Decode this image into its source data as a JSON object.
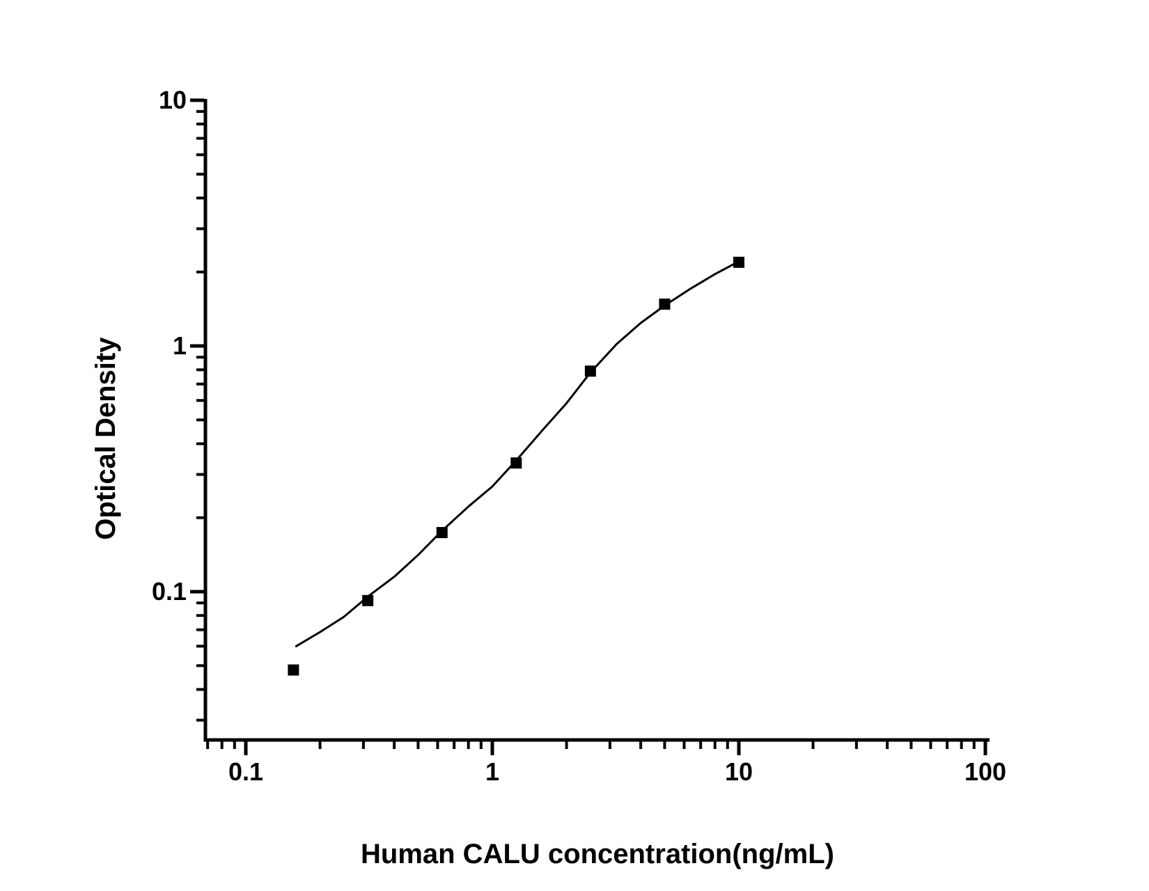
{
  "chart_data": {
    "type": "scatter",
    "title": "",
    "xlabel": "Human CALU concentration(ng/mL)",
    "ylabel": "Optical Density",
    "x_scale": "log",
    "y_scale": "log",
    "xlim": [
      0.07,
      100
    ],
    "ylim": [
      0.025,
      10
    ],
    "grid": false,
    "legend": false,
    "x_ticks": {
      "values": [
        0.1,
        1,
        10,
        100
      ],
      "labels": [
        "0.1",
        "1",
        "10",
        "100"
      ]
    },
    "y_ticks": {
      "values": [
        0.1,
        1,
        10
      ],
      "labels": [
        "0.1",
        "1",
        "10"
      ]
    },
    "series": [
      {
        "name": "standard-points",
        "kind": "scatter",
        "marker": "filled-square",
        "marker_size_px": 16,
        "color": "#000000",
        "x": [
          0.156,
          0.3125,
          0.625,
          1.25,
          2.5,
          5,
          10
        ],
        "y": [
          0.048,
          0.092,
          0.174,
          0.334,
          0.79,
          1.48,
          2.19
        ]
      },
      {
        "name": "fitted-curve",
        "kind": "line",
        "color": "#000000",
        "x": [
          0.16,
          0.2,
          0.25,
          0.3125,
          0.4,
          0.5,
          0.625,
          0.8,
          1.0,
          1.25,
          1.6,
          2.0,
          2.5,
          3.2,
          4.0,
          5.0,
          6.3,
          8.0,
          10.2
        ],
        "y": [
          0.06,
          0.0685,
          0.079,
          0.0955,
          0.115,
          0.141,
          0.177,
          0.222,
          0.268,
          0.342,
          0.455,
          0.585,
          0.78,
          1.02,
          1.24,
          1.46,
          1.7,
          1.96,
          2.23
        ]
      }
    ],
    "axis_color": "#000000"
  }
}
